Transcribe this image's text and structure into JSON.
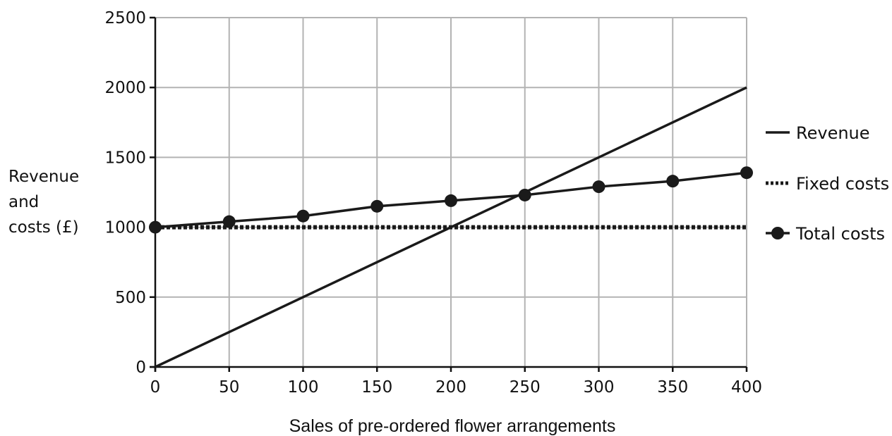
{
  "chart_data": {
    "type": "line",
    "xlabel": "Sales of pre-ordered flower arrangements",
    "ylabel_lines": [
      "Revenue",
      "and",
      "costs (£)"
    ],
    "xlim": [
      0,
      400
    ],
    "ylim": [
      0,
      2500
    ],
    "x_ticks": [
      0,
      50,
      100,
      150,
      200,
      250,
      300,
      350,
      400
    ],
    "y_ticks": [
      0,
      500,
      1000,
      1500,
      2000,
      2500
    ],
    "grid": true,
    "legend_position": "right",
    "series": [
      {
        "name": "Revenue",
        "style": "solid",
        "x": [
          0,
          400
        ],
        "values": [
          0,
          2000
        ]
      },
      {
        "name": "Fixed costs",
        "style": "dotted",
        "x": [
          0,
          400
        ],
        "values": [
          1000,
          1000
        ]
      },
      {
        "name": "Total costs",
        "style": "solid-markers",
        "x": [
          0,
          50,
          100,
          150,
          200,
          250,
          300,
          350,
          400
        ],
        "values": [
          1000,
          1040,
          1080,
          1150,
          1190,
          1230,
          1290,
          1330,
          1390
        ]
      }
    ],
    "colors": {
      "line": "#1a1a1a",
      "grid": "#b3b3b3"
    }
  }
}
